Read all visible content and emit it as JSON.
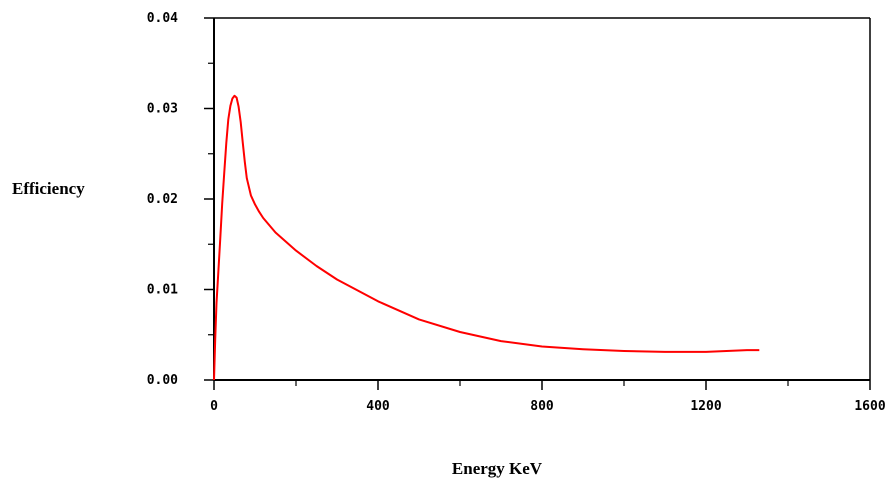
{
  "chart_data": {
    "type": "line",
    "title": "",
    "xlabel": "Energy KeV",
    "ylabel": "Efficiency",
    "xlim": [
      0,
      1600
    ],
    "ylim": [
      0,
      0.04
    ],
    "x_ticks": [
      "0",
      "400",
      "800",
      "1200",
      "1600"
    ],
    "y_ticks": [
      "0.00",
      "0.01",
      "0.02",
      "0.03",
      "0.04"
    ],
    "grid": false,
    "legend": "none",
    "series": [
      {
        "color": "#ff0000",
        "x": [
          0,
          3,
          6,
          10,
          15,
          20,
          25,
          30,
          35,
          40,
          45,
          50,
          55,
          60,
          65,
          70,
          75,
          80,
          90,
          100,
          110,
          120,
          150,
          200,
          250,
          300,
          400,
          500,
          600,
          700,
          800,
          900,
          1000,
          1100,
          1150,
          1200,
          1250,
          1300,
          1330
        ],
        "y": [
          0.0,
          0.0045,
          0.0085,
          0.0115,
          0.0155,
          0.0195,
          0.023,
          0.0262,
          0.0288,
          0.0303,
          0.0311,
          0.0314,
          0.0312,
          0.0302,
          0.0285,
          0.0263,
          0.0241,
          0.0223,
          0.0204,
          0.0194,
          0.0186,
          0.0179,
          0.0163,
          0.0143,
          0.0126,
          0.0111,
          0.0087,
          0.0067,
          0.0053,
          0.0043,
          0.0037,
          0.0034,
          0.0032,
          0.0031,
          0.0031,
          0.0031,
          0.0032,
          0.0033,
          0.0033
        ]
      }
    ]
  }
}
